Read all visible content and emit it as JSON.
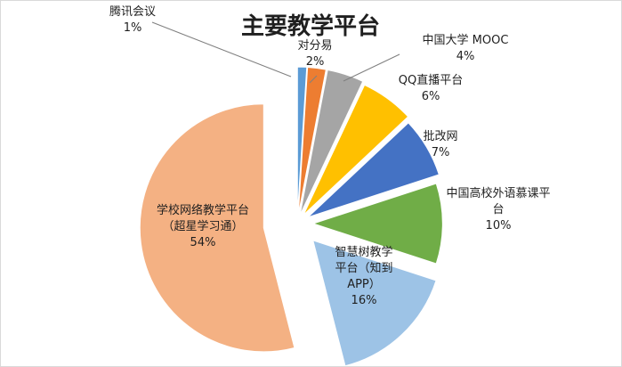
{
  "chart_data": {
    "type": "pie",
    "title": "主要教学平台",
    "exploded": true,
    "slices": [
      {
        "label": "腾讯会议",
        "label_lines": [
          "腾讯会议"
        ],
        "percent_label": "1%",
        "value": 1,
        "color": "#5b9bd5"
      },
      {
        "label": "对分易",
        "label_lines": [
          "对分易"
        ],
        "percent_label": "2%",
        "value": 2,
        "color": "#ed7d31"
      },
      {
        "label": "中国大学 MOOC",
        "label_lines": [
          "中国大学 MOOC"
        ],
        "percent_label": "4%",
        "value": 4,
        "color": "#a5a5a5"
      },
      {
        "label": "QQ直播平台",
        "label_lines": [
          "QQ直播平台"
        ],
        "percent_label": "6%",
        "value": 6,
        "color": "#ffc000"
      },
      {
        "label": "批改网",
        "label_lines": [
          "批改网"
        ],
        "percent_label": "7%",
        "value": 7,
        "color": "#4472c4"
      },
      {
        "label": "中国高校外语慕课平台",
        "label_lines": [
          "中国高校外语慕课平",
          "台"
        ],
        "percent_label": "10%",
        "value": 10,
        "color": "#70ad47"
      },
      {
        "label": "智慧树教学平台（知到APP）",
        "label_lines": [
          "智慧树教学",
          "平台（知到",
          "APP）"
        ],
        "percent_label": "16%",
        "value": 16,
        "color": "#9dc3e6"
      },
      {
        "label": "学校网络教学平台（超星学习通）",
        "label_lines": [
          "学校网络教学平台",
          "（超星学习通）"
        ],
        "percent_label": "54%",
        "value": 54,
        "color": "#f4b183"
      }
    ]
  }
}
